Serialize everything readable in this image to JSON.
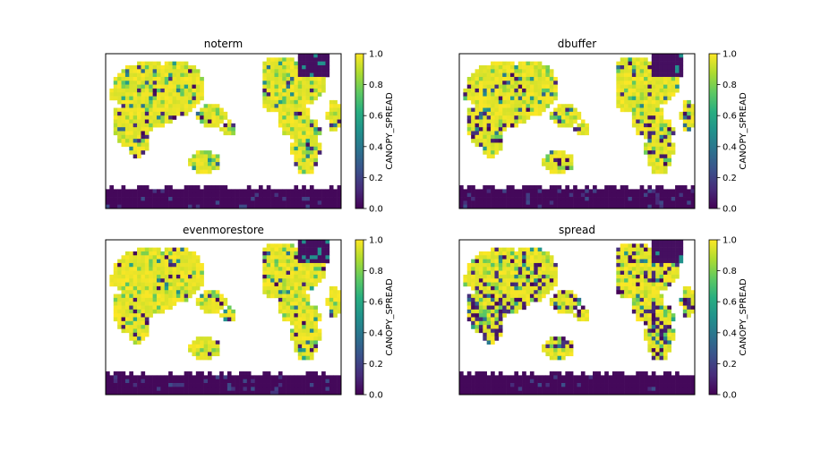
{
  "chart_data": [
    {
      "type": "heatmap",
      "title": "noterm",
      "colorbar": {
        "label": "CANOPY_SPREAD",
        "range": [
          0.0,
          1.0
        ],
        "ticks": [
          "0.0",
          "0.2",
          "0.4",
          "0.6",
          "0.8",
          "1.0"
        ],
        "colormap": "viridis"
      },
      "pattern": {
        "dark_patches": 0.1,
        "seed": 11
      }
    },
    {
      "type": "heatmap",
      "title": "dbuffer",
      "colorbar": {
        "label": "CANOPY_SPREAD",
        "range": [
          0.0,
          1.0
        ],
        "ticks": [
          "0.0",
          "0.2",
          "0.4",
          "0.6",
          "0.8",
          "1.0"
        ],
        "colormap": "viridis"
      },
      "pattern": {
        "dark_patches": 0.12,
        "seed": 23
      }
    },
    {
      "type": "heatmap",
      "title": "evenmorestore",
      "colorbar": {
        "label": "CANOPY_SPREAD",
        "range": [
          0.0,
          1.0
        ],
        "ticks": [
          "0.0",
          "0.2",
          "0.4",
          "0.6",
          "0.8",
          "1.0"
        ],
        "colormap": "viridis"
      },
      "pattern": {
        "dark_patches": 0.08,
        "seed": 37
      }
    },
    {
      "type": "heatmap",
      "title": "spread",
      "colorbar": {
        "label": "CANOPY_SPREAD",
        "range": [
          0.0,
          1.0
        ],
        "ticks": [
          "0.0",
          "0.2",
          "0.4",
          "0.6",
          "0.8",
          "1.0"
        ],
        "colormap": "viridis"
      },
      "pattern": {
        "dark_patches": 0.35,
        "seed": 51
      }
    }
  ]
}
